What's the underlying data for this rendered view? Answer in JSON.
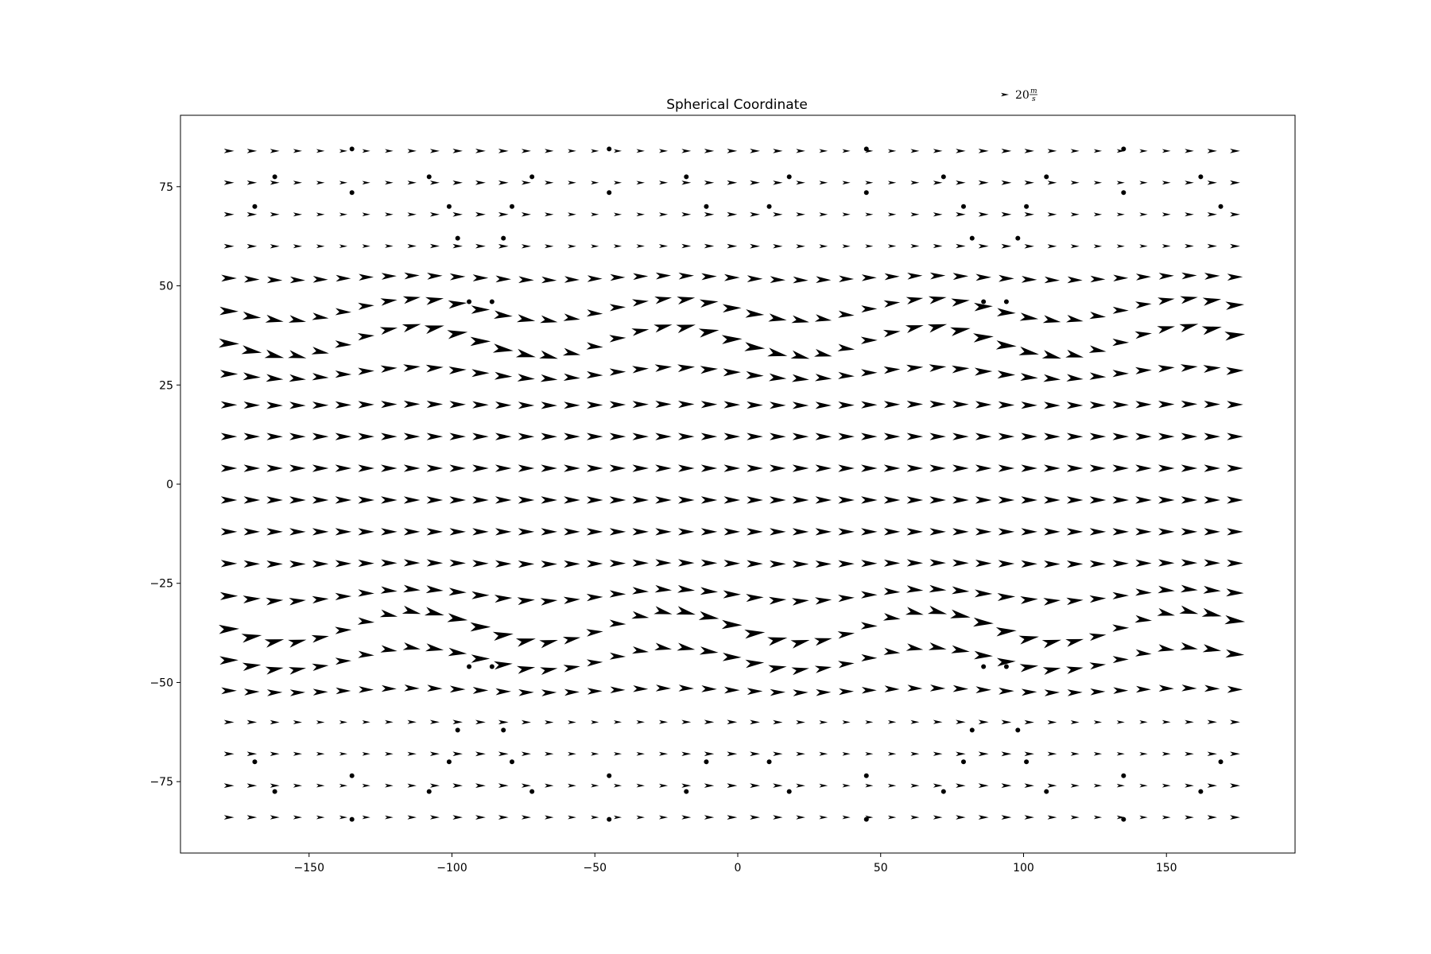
{
  "chart_data": {
    "type": "quiver",
    "title": "Spherical Coordinate",
    "xlim": [
      -195,
      195
    ],
    "ylim": [
      -93,
      93
    ],
    "x_ticks": [
      -150,
      -100,
      -50,
      0,
      50,
      100,
      150
    ],
    "y_ticks": [
      -75,
      -50,
      -25,
      0,
      25,
      50,
      75
    ],
    "x_tick_labels": [
      "−150",
      "−100",
      "−50",
      "0",
      "50",
      "100",
      "150"
    ],
    "y_tick_labels": [
      "−75",
      "−50",
      "−25",
      "0",
      "25",
      "50",
      "75"
    ],
    "grid": false,
    "quiver_key": {
      "magnitude": 20,
      "label_value": "20",
      "unit_num": "m",
      "unit_den": "s",
      "placement": "top-right-above-axes"
    },
    "field": {
      "description_units": "wind vectors in m/s on a lon/lat grid",
      "grid_spacing": 8,
      "mostly_eastward": true,
      "pole_dots": [
        {
          "x": -135,
          "y": 84.5
        },
        {
          "x": -45,
          "y": 84.5
        },
        {
          "x": 45,
          "y": 84.5
        },
        {
          "x": 135,
          "y": 84.5
        },
        {
          "x": -162,
          "y": 77.5
        },
        {
          "x": -108,
          "y": 77.5
        },
        {
          "x": -72,
          "y": 77.5
        },
        {
          "x": -18,
          "y": 77.5
        },
        {
          "x": 18,
          "y": 77.5
        },
        {
          "x": 72,
          "y": 77.5
        },
        {
          "x": 108,
          "y": 77.5
        },
        {
          "x": 162,
          "y": 77.5
        },
        {
          "x": -135,
          "y": 73.5
        },
        {
          "x": -45,
          "y": 73.5
        },
        {
          "x": 45,
          "y": 73.5
        },
        {
          "x": 135,
          "y": 73.5
        },
        {
          "x": -169,
          "y": 70
        },
        {
          "x": -101,
          "y": 70
        },
        {
          "x": -79,
          "y": 70
        },
        {
          "x": -11,
          "y": 70
        },
        {
          "x": 11,
          "y": 70
        },
        {
          "x": 79,
          "y": 70
        },
        {
          "x": 101,
          "y": 70
        },
        {
          "x": 169,
          "y": 70
        },
        {
          "x": -98,
          "y": 62
        },
        {
          "x": -82,
          "y": 62
        },
        {
          "x": 82,
          "y": 62
        },
        {
          "x": 98,
          "y": 62
        },
        {
          "x": -94,
          "y": 46
        },
        {
          "x": -86,
          "y": 46
        },
        {
          "x": 86,
          "y": 46
        },
        {
          "x": 94,
          "y": 46
        },
        {
          "x": -135,
          "y": -84.5
        },
        {
          "x": -45,
          "y": -84.5
        },
        {
          "x": 45,
          "y": -84.5
        },
        {
          "x": 135,
          "y": -84.5
        },
        {
          "x": -162,
          "y": -77.5
        },
        {
          "x": -108,
          "y": -77.5
        },
        {
          "x": -72,
          "y": -77.5
        },
        {
          "x": -18,
          "y": -77.5
        },
        {
          "x": 18,
          "y": -77.5
        },
        {
          "x": 72,
          "y": -77.5
        },
        {
          "x": 108,
          "y": -77.5
        },
        {
          "x": 162,
          "y": -77.5
        },
        {
          "x": -135,
          "y": -73.5
        },
        {
          "x": -45,
          "y": -73.5
        },
        {
          "x": 45,
          "y": -73.5
        },
        {
          "x": 135,
          "y": -73.5
        },
        {
          "x": -169,
          "y": -70
        },
        {
          "x": -101,
          "y": -70
        },
        {
          "x": -79,
          "y": -70
        },
        {
          "x": -11,
          "y": -70
        },
        {
          "x": 11,
          "y": -70
        },
        {
          "x": 79,
          "y": -70
        },
        {
          "x": 101,
          "y": -70
        },
        {
          "x": 169,
          "y": -70
        },
        {
          "x": -98,
          "y": -62
        },
        {
          "x": -82,
          "y": -62
        },
        {
          "x": 82,
          "y": -62
        },
        {
          "x": 98,
          "y": -62
        },
        {
          "x": -94,
          "y": -46
        },
        {
          "x": -86,
          "y": -46
        },
        {
          "x": 86,
          "y": -46
        },
        {
          "x": 94,
          "y": -46
        }
      ]
    }
  }
}
